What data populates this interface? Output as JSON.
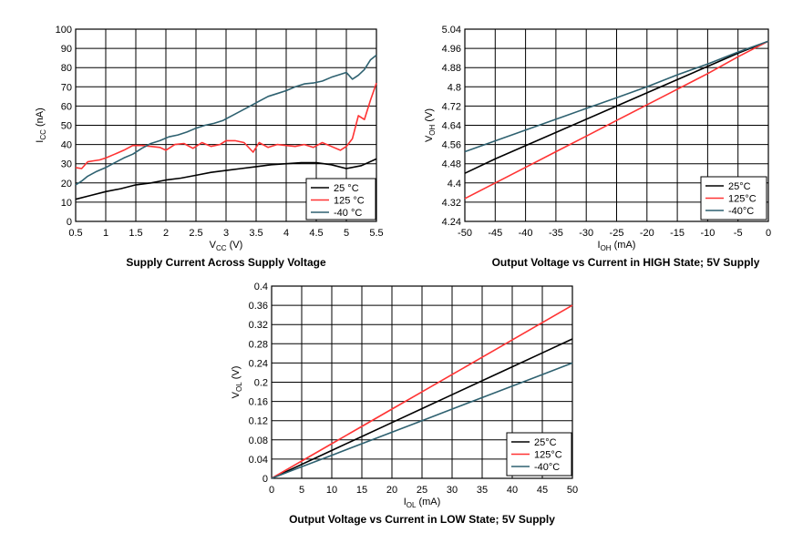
{
  "colors": {
    "c25": "#000000",
    "c125": "#ff3333",
    "cm40": "#2e6170",
    "grid": "#000000"
  },
  "chart_data": [
    {
      "type": "line",
      "title": "Supply Current Across Supply Voltage",
      "xlabel": {
        "main": "V",
        "sub": "CC",
        "unit": " (V)"
      },
      "ylabel": {
        "main": "I",
        "sub": "CC",
        "unit": " (nA)"
      },
      "xlim": [
        0.5,
        5.5
      ],
      "ylim": [
        0,
        100
      ],
      "x_ticks": [
        "0.5",
        "1",
        "1.5",
        "2",
        "2.5",
        "3",
        "3.5",
        "4",
        "4.5",
        "5",
        "5.5"
      ],
      "y_ticks": [
        "0",
        "10",
        "20",
        "30",
        "40",
        "50",
        "60",
        "70",
        "80",
        "90",
        "100"
      ],
      "grid": true,
      "legend_position": "bottom-right",
      "series": [
        {
          "name": "25 °C",
          "color_key": "c25",
          "x": [
            0.5,
            0.75,
            1,
            1.25,
            1.5,
            1.75,
            2,
            2.25,
            2.5,
            2.75,
            3,
            3.25,
            3.5,
            3.75,
            4,
            4.25,
            4.5,
            4.75,
            5,
            5.25,
            5.5
          ],
          "y": [
            11.5,
            13.5,
            15.5,
            17,
            19,
            20,
            21.5,
            22.5,
            24,
            25.5,
            26.5,
            27.5,
            28.5,
            29.5,
            30,
            30.5,
            30.5,
            29.5,
            27.5,
            29,
            32.5
          ]
        },
        {
          "name": "125 °C",
          "color_key": "c125",
          "x": [
            0.5,
            0.6,
            0.7,
            0.8,
            0.9,
            1,
            1.15,
            1.3,
            1.45,
            1.6,
            1.75,
            1.9,
            2,
            2.15,
            2.3,
            2.45,
            2.6,
            2.75,
            2.9,
            3,
            3.15,
            3.3,
            3.45,
            3.55,
            3.7,
            3.85,
            4,
            4.15,
            4.3,
            4.45,
            4.6,
            4.75,
            4.9,
            5,
            5.1,
            5.2,
            5.3,
            5.4,
            5.5
          ],
          "y": [
            28,
            27.5,
            31,
            31.5,
            32,
            33,
            35,
            37,
            39.5,
            39.5,
            39,
            38.5,
            37,
            40,
            40.5,
            38,
            41,
            39,
            40,
            42,
            42,
            41,
            36,
            41,
            38.5,
            40,
            39.5,
            39,
            40,
            38.5,
            41,
            39,
            37,
            39,
            43,
            55,
            53,
            63,
            72
          ]
        },
        {
          "name": "-40 °C",
          "color_key": "cm40",
          "x": [
            0.5,
            0.6,
            0.7,
            0.85,
            1,
            1.15,
            1.3,
            1.45,
            1.6,
            1.75,
            1.9,
            2.05,
            2.2,
            2.35,
            2.5,
            2.65,
            2.8,
            2.95,
            3.1,
            3.25,
            3.4,
            3.55,
            3.7,
            3.85,
            4,
            4.15,
            4.3,
            4.45,
            4.6,
            4.75,
            4.9,
            5,
            5.1,
            5.2,
            5.3,
            5.4,
            5.5
          ],
          "y": [
            19,
            21,
            23.5,
            26,
            28,
            30.5,
            33,
            35,
            38,
            40.5,
            42,
            44,
            45,
            46.5,
            48.5,
            50,
            51,
            52.5,
            55,
            57.5,
            60,
            62.5,
            65,
            66.5,
            68,
            70,
            71.5,
            72,
            73,
            75,
            76.5,
            77.5,
            74,
            76,
            79,
            84,
            86.5
          ]
        }
      ]
    },
    {
      "type": "line",
      "title": "Output Voltage vs Current in HIGH State; 5V Supply",
      "xlabel": {
        "main": "I",
        "sub": "OH",
        "unit": " (mA)"
      },
      "ylabel": {
        "main": "V",
        "sub": "OH",
        "unit": " (V)"
      },
      "xlim": [
        -50,
        0
      ],
      "ylim": [
        4.24,
        5.04
      ],
      "x_ticks": [
        "-50",
        "-45",
        "-40",
        "-35",
        "-30",
        "-25",
        "-20",
        "-15",
        "-10",
        "-5",
        "0"
      ],
      "y_ticks": [
        "4.24",
        "4.32",
        "4.4",
        "4.48",
        "4.56",
        "4.64",
        "4.72",
        "4.8",
        "4.88",
        "4.96",
        "5.04"
      ],
      "grid": true,
      "legend_position": "bottom-right",
      "series": [
        {
          "name": "25°C",
          "color_key": "c25",
          "x": [
            -50,
            -45,
            -40,
            -35,
            -30,
            -25,
            -20,
            -15,
            -10,
            -5,
            0
          ],
          "y": [
            4.44,
            4.5,
            4.555,
            4.61,
            4.665,
            4.72,
            4.775,
            4.83,
            4.885,
            4.94,
            4.99
          ]
        },
        {
          "name": "125°C",
          "color_key": "c125",
          "x": [
            -50,
            -45,
            -40,
            -35,
            -30,
            -25,
            -20,
            -15,
            -10,
            -5,
            0
          ],
          "y": [
            4.335,
            4.4,
            4.465,
            4.53,
            4.595,
            4.66,
            4.725,
            4.79,
            4.855,
            4.925,
            4.99
          ]
        },
        {
          "name": "-40°C",
          "color_key": "cm40",
          "x": [
            -50,
            -45,
            -40,
            -35,
            -30,
            -25,
            -20,
            -15,
            -10,
            -5,
            0
          ],
          "y": [
            4.53,
            4.575,
            4.62,
            4.665,
            4.71,
            4.755,
            4.8,
            4.85,
            4.895,
            4.945,
            4.99
          ]
        }
      ]
    },
    {
      "type": "line",
      "title": "Output Voltage vs Current in LOW State; 5V Supply",
      "xlabel": {
        "main": "I",
        "sub": "OL",
        "unit": " (mA)"
      },
      "ylabel": {
        "main": "V",
        "sub": "OL",
        "unit": " (V)"
      },
      "xlim": [
        0,
        50
      ],
      "ylim": [
        0,
        0.4
      ],
      "x_ticks": [
        "0",
        "5",
        "10",
        "15",
        "20",
        "25",
        "30",
        "35",
        "40",
        "45",
        "50"
      ],
      "y_ticks": [
        "0",
        "0.04",
        "0.08",
        "0.12",
        "0.16",
        "0.2",
        "0.24",
        "0.28",
        "0.32",
        "0.36",
        "0.4"
      ],
      "grid": true,
      "legend_position": "bottom-right",
      "series": [
        {
          "name": "25°C",
          "color_key": "c25",
          "x": [
            0,
            5,
            10,
            15,
            20,
            25,
            30,
            35,
            40,
            45,
            50
          ],
          "y": [
            0,
            0.029,
            0.058,
            0.087,
            0.116,
            0.145,
            0.174,
            0.203,
            0.232,
            0.261,
            0.29
          ]
        },
        {
          "name": "125°C",
          "color_key": "c125",
          "x": [
            0,
            5,
            10,
            15,
            20,
            25,
            30,
            35,
            40,
            45,
            50
          ],
          "y": [
            0,
            0.036,
            0.072,
            0.108,
            0.144,
            0.18,
            0.216,
            0.252,
            0.288,
            0.324,
            0.36
          ]
        },
        {
          "name": "-40°C",
          "color_key": "cm40",
          "x": [
            0,
            5,
            10,
            15,
            20,
            25,
            30,
            35,
            40,
            45,
            50
          ],
          "y": [
            0,
            0.024,
            0.048,
            0.072,
            0.096,
            0.12,
            0.144,
            0.168,
            0.192,
            0.216,
            0.24
          ]
        }
      ]
    }
  ]
}
